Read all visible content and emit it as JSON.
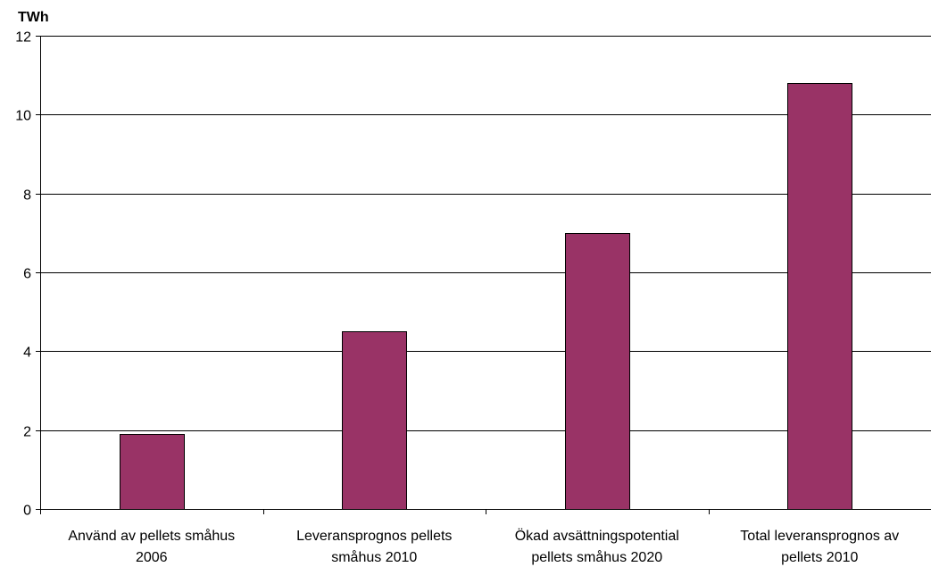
{
  "chart_data": {
    "type": "bar",
    "ylabel": "TWh",
    "ylim": [
      0,
      12
    ],
    "yticks": [
      "0",
      "2",
      "4",
      "6",
      "8",
      "10",
      "12"
    ],
    "grid": true,
    "legend": "none",
    "categories": [
      [
        "Använd av pellets småhus",
        "2006"
      ],
      [
        "Leveransprognos pellets",
        "småhus 2010"
      ],
      [
        "Ökad avsättningspotential",
        "pellets småhus 2020"
      ],
      [
        "Total leveransprognos av",
        "pellets 2010"
      ]
    ],
    "values": [
      1.9,
      4.5,
      7.0,
      10.8
    ],
    "bar_color": "#993366",
    "bar_outline_color": "#000000",
    "grid_color": "#000000"
  }
}
